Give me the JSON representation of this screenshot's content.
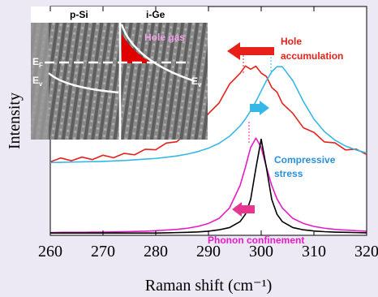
{
  "chart_data": {
    "type": "line",
    "xlabel": "Raman shift (cm⁻¹)",
    "ylabel": "Intensity",
    "x": [
      260,
      262,
      264,
      266,
      268,
      270,
      272,
      274,
      276,
      278,
      280,
      282,
      284,
      286,
      288,
      290,
      292,
      294,
      296,
      297,
      298,
      299,
      300,
      301,
      302,
      303,
      304,
      306,
      308,
      310,
      312,
      314,
      316,
      318,
      320
    ],
    "series": [
      {
        "color": "#e8201a",
        "values": [
          32.1,
          33.8,
          32.6,
          34.2,
          33.1,
          35.0,
          33.9,
          35.8,
          35.2,
          37.6,
          37.4,
          40.3,
          40.9,
          45.0,
          47.1,
          53.2,
          57.8,
          66.1,
          70.8,
          74.0,
          72.6,
          73.9,
          70.9,
          69.4,
          64.6,
          62.6,
          57.7,
          53.3,
          47.0,
          45.0,
          40.8,
          40.4,
          37.3,
          37.7,
          35.3
        ]
      },
      {
        "color": "#35b8e8",
        "values": [
          31.8,
          31.9,
          32.0,
          32.1,
          32.2,
          32.3,
          32.5,
          32.7,
          33.0,
          33.3,
          33.6,
          34.1,
          34.7,
          35.5,
          36.6,
          38.1,
          40.2,
          43.3,
          47.8,
          50.8,
          54.4,
          58.5,
          63.1,
          67.6,
          71.5,
          73.7,
          73.7,
          67.6,
          58.5,
          50.8,
          45.3,
          41.6,
          39.0,
          37.3,
          36.0
        ]
      },
      {
        "color": "#e81ac8",
        "values": [
          1.2,
          1.3,
          1.3,
          1.3,
          1.4,
          1.4,
          1.5,
          1.6,
          1.7,
          1.8,
          2.0,
          2.3,
          2.6,
          3.1,
          3.9,
          5.2,
          7.4,
          12.0,
          21.8,
          29.7,
          38.4,
          42.5,
          38.4,
          29.7,
          21.8,
          15.9,
          12.0,
          7.4,
          5.2,
          3.9,
          3.1,
          2.6,
          2.3,
          2.0,
          1.8
        ]
      },
      {
        "color": "#000000",
        "values": [
          1,
          1,
          1,
          1,
          1,
          1,
          1,
          1,
          1,
          1,
          1,
          1.1,
          1.2,
          1.3,
          1.5,
          1.8,
          2.4,
          3.4,
          6,
          9.2,
          15.7,
          29.4,
          42,
          29.4,
          15.7,
          9.2,
          6,
          3.4,
          2.4,
          1.9,
          1.6,
          1.4,
          1.3,
          1.2,
          1.1
        ]
      }
    ],
    "xlim": [
      260,
      320
    ],
    "xticks": [
      260,
      270,
      280,
      290,
      300,
      310,
      320
    ],
    "ylim": [
      0,
      100
    ],
    "annotations": {
      "hole_accumulation": [
        "Hole",
        "accumulation"
      ],
      "compressive_stress": [
        "Compressive",
        "stress"
      ],
      "phonon_confinement": "Phonon confinement"
    },
    "inset": {
      "left_label": "p-Si",
      "right_label": "i-Ge",
      "hole_gas": "Hole gas",
      "fermi": {
        "symbol": "E",
        "subscript": "F"
      },
      "valence_left": {
        "symbol": "E",
        "subscript": "v"
      },
      "valence_right": {
        "symbol": "E",
        "subscript": "v"
      }
    }
  }
}
